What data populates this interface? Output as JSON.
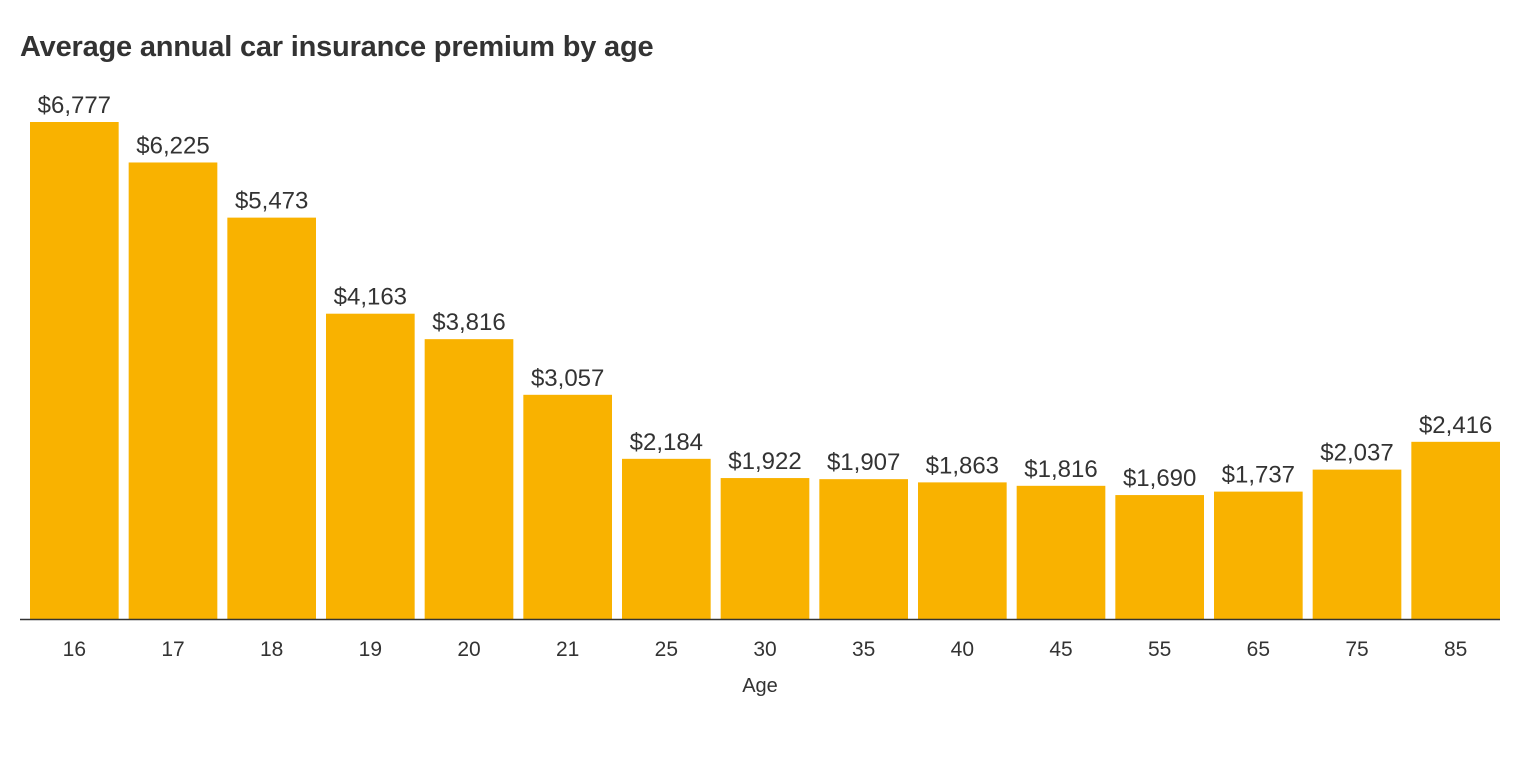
{
  "chart_data": {
    "type": "bar",
    "title": "Average annual car insurance premium by age",
    "xlabel": "Age",
    "ylabel": "",
    "categories": [
      "16",
      "17",
      "18",
      "19",
      "20",
      "21",
      "25",
      "30",
      "35",
      "40",
      "45",
      "55",
      "65",
      "75",
      "85"
    ],
    "values": [
      6777,
      6225,
      5473,
      4163,
      3816,
      3057,
      2184,
      1922,
      1907,
      1863,
      1816,
      1690,
      1737,
      2037,
      2416
    ],
    "value_labels": [
      "$6,777",
      "$6,225",
      "$5,473",
      "$4,163",
      "$3,816",
      "$3,057",
      "$2,184",
      "$1,922",
      "$1,907",
      "$1,863",
      "$1,816",
      "$1,690",
      "$1,737",
      "$2,037",
      "$2,416"
    ],
    "ylim": [
      0,
      6777
    ],
    "grid": false,
    "legend": "none",
    "colors": {
      "bar": "#F9B200",
      "axis": "#333333",
      "text": "#333333"
    }
  }
}
